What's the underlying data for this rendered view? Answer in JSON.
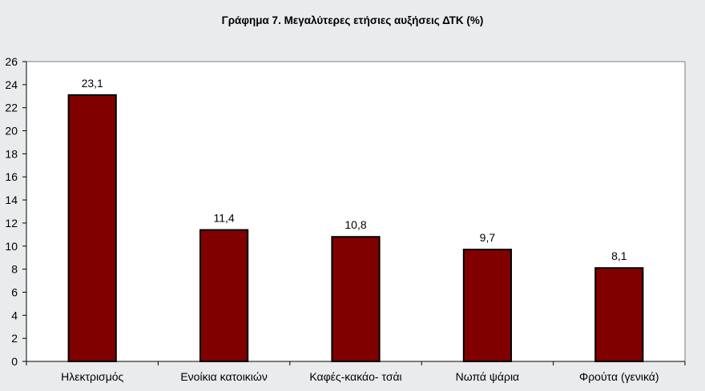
{
  "chart_data": {
    "type": "bar",
    "title": "Γράφημα 7. Μεγαλύτερες ετήσιες αυξήσεις ΔΤΚ (%)",
    "categories": [
      "Ηλεκτρισμός",
      "Ενοίκια κατοικιών",
      "Καφές-κακάο- τσάι",
      "Νωπά ψάρια",
      "Φρούτα (γενικά)"
    ],
    "values": [
      23.1,
      11.4,
      10.8,
      9.7,
      8.1
    ],
    "data_labels": [
      "23,1",
      "11,4",
      "10,8",
      "9,7",
      "8,1"
    ],
    "ylim": [
      0,
      26
    ],
    "yticks": [
      "0",
      "2",
      "4",
      "6",
      "8",
      "10",
      "12",
      "14",
      "16",
      "18",
      "20",
      "22",
      "24",
      "26"
    ],
    "grid": false,
    "legend": "none",
    "colors": {
      "bar_fill": "#800000",
      "bar_stroke": "#000000",
      "plot_background": "#ffffff",
      "page_background": "#e9ebec"
    }
  }
}
